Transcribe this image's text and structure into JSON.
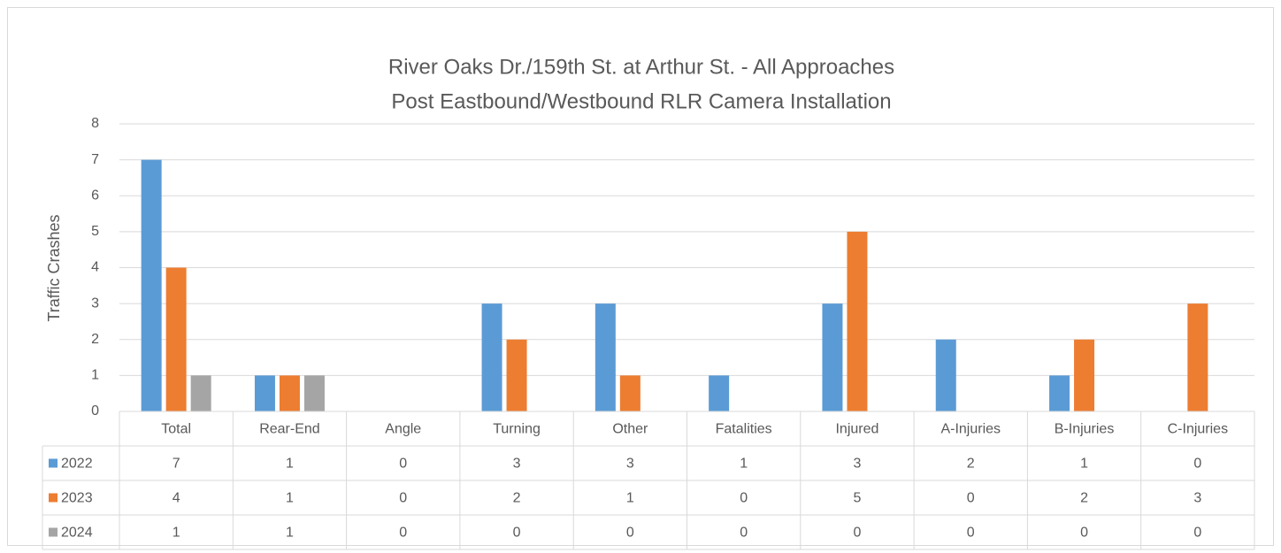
{
  "chart_data": {
    "type": "bar",
    "title": "River Oaks Dr./159th St. at Arthur St. - All Approaches",
    "subtitle": "Post Eastbound/Westbound RLR Camera Installation",
    "y_label": "Traffic Crashes",
    "categories": [
      "Total",
      "Rear-End",
      "Angle",
      "Turning",
      "Other",
      "Fatalities",
      "Injured",
      "A-Injuries",
      "B-Injuries",
      "C-Injuries"
    ],
    "series": [
      {
        "name": "2022",
        "color": "#5b9bd5",
        "values": [
          7,
          1,
          0,
          3,
          3,
          1,
          3,
          2,
          1,
          0
        ]
      },
      {
        "name": "2023",
        "color": "#ed7d31",
        "values": [
          4,
          1,
          0,
          2,
          1,
          0,
          5,
          0,
          2,
          3
        ]
      },
      {
        "name": "2024",
        "color": "#a5a5a5",
        "values": [
          1,
          1,
          0,
          0,
          0,
          0,
          0,
          0,
          0,
          0
        ]
      }
    ],
    "ylim": [
      0,
      8
    ],
    "yticks": [
      0,
      1,
      2,
      3,
      4,
      5,
      6,
      7,
      8
    ],
    "grid": true,
    "data_table": true
  }
}
